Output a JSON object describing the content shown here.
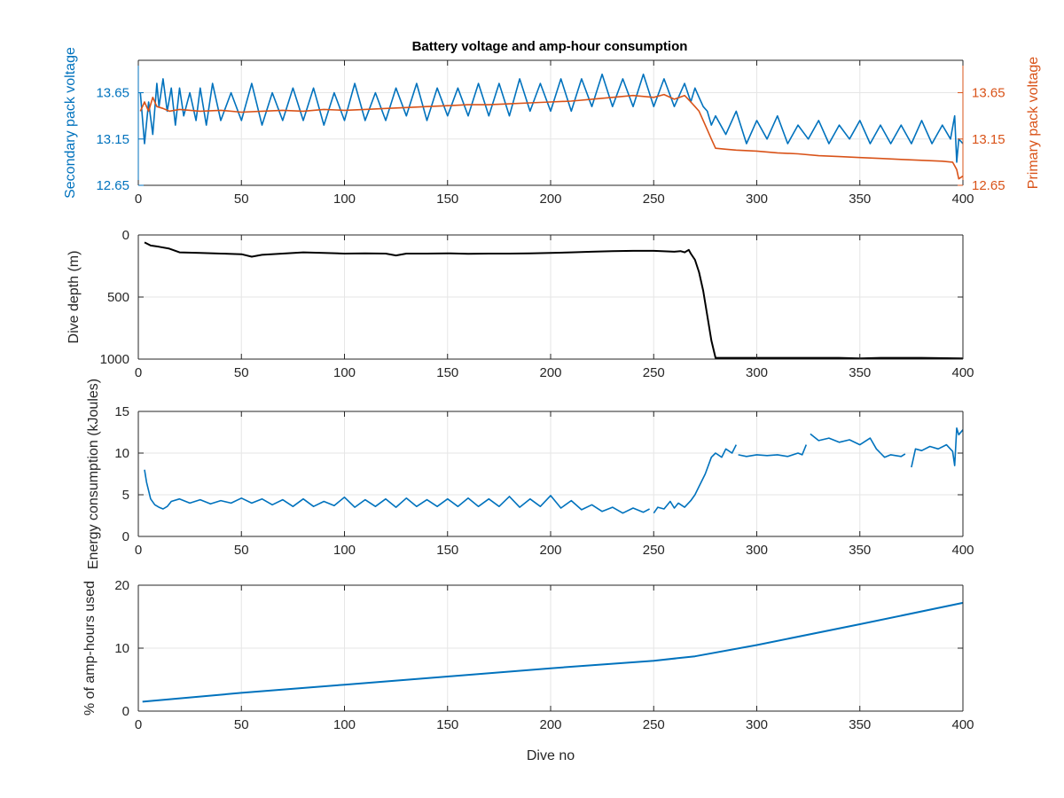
{
  "figure": {
    "title": "Battery voltage and amp-hour consumption"
  },
  "colors": {
    "blue": "#0072BD",
    "orange": "#D95319",
    "black": "#000000",
    "grid": "#e6e6e6",
    "axis": "#262626"
  },
  "chart_data": [
    {
      "type": "line",
      "title": "Battery voltage and amp-hour consumption",
      "xlabel": "",
      "ylabel": "Secondary pack voltage",
      "y2label": "Primary pack voltage",
      "xlim": [
        0,
        400
      ],
      "ylim": [
        12.65,
        14.0
      ],
      "y2lim": [
        12.65,
        14.0
      ],
      "xticks": [
        0,
        50,
        100,
        150,
        200,
        250,
        300,
        350,
        400
      ],
      "yticks": [
        12.65,
        13.15,
        13.65
      ],
      "y2ticks": [
        12.65,
        13.15,
        13.65
      ],
      "grid": true,
      "series": [
        {
          "color": "#0072BD",
          "axis": "left",
          "x": [
            1,
            3,
            5,
            7,
            9,
            10,
            12,
            14,
            16,
            18,
            20,
            22,
            25,
            28,
            30,
            33,
            36,
            40,
            45,
            50,
            55,
            60,
            65,
            70,
            75,
            80,
            85,
            90,
            95,
            100,
            105,
            110,
            115,
            120,
            125,
            130,
            135,
            140,
            145,
            150,
            155,
            160,
            165,
            170,
            175,
            180,
            185,
            190,
            195,
            200,
            205,
            210,
            215,
            220,
            225,
            230,
            235,
            240,
            245,
            250,
            255,
            260,
            265,
            268,
            270,
            272,
            274,
            276,
            278,
            280,
            285,
            290,
            295,
            300,
            305,
            310,
            315,
            320,
            325,
            330,
            335,
            340,
            345,
            350,
            355,
            360,
            365,
            370,
            375,
            380,
            385,
            390,
            394,
            396,
            397,
            398,
            400
          ],
          "values": [
            13.65,
            13.1,
            13.55,
            13.2,
            13.75,
            13.5,
            13.8,
            13.45,
            13.7,
            13.3,
            13.7,
            13.4,
            13.65,
            13.35,
            13.7,
            13.3,
            13.75,
            13.35,
            13.65,
            13.35,
            13.75,
            13.3,
            13.65,
            13.35,
            13.7,
            13.35,
            13.7,
            13.3,
            13.65,
            13.35,
            13.75,
            13.35,
            13.65,
            13.35,
            13.7,
            13.4,
            13.75,
            13.35,
            13.7,
            13.4,
            13.7,
            13.4,
            13.75,
            13.4,
            13.75,
            13.4,
            13.8,
            13.45,
            13.75,
            13.45,
            13.8,
            13.45,
            13.8,
            13.5,
            13.85,
            13.5,
            13.8,
            13.5,
            13.85,
            13.5,
            13.8,
            13.5,
            13.75,
            13.55,
            13.7,
            13.6,
            13.5,
            13.45,
            13.3,
            13.4,
            13.2,
            13.45,
            13.1,
            13.35,
            13.15,
            13.4,
            13.1,
            13.3,
            13.15,
            13.35,
            13.1,
            13.3,
            13.15,
            13.35,
            13.1,
            13.3,
            13.1,
            13.3,
            13.1,
            13.35,
            13.1,
            13.3,
            13.15,
            13.4,
            12.9,
            13.15,
            13.1
          ]
        },
        {
          "color": "#D95319",
          "axis": "right",
          "x": [
            1,
            3,
            5,
            7,
            9,
            12,
            15,
            20,
            25,
            30,
            40,
            50,
            60,
            70,
            80,
            90,
            100,
            110,
            120,
            130,
            140,
            150,
            160,
            170,
            180,
            190,
            200,
            210,
            220,
            230,
            240,
            250,
            255,
            260,
            265,
            268,
            270,
            272,
            274,
            276,
            278,
            280,
            285,
            290,
            300,
            310,
            320,
            330,
            340,
            350,
            360,
            370,
            380,
            390,
            395,
            397,
            398,
            400
          ],
          "values": [
            13.45,
            13.55,
            13.45,
            13.6,
            13.5,
            13.48,
            13.45,
            13.47,
            13.46,
            13.45,
            13.46,
            13.44,
            13.45,
            13.46,
            13.45,
            13.47,
            13.46,
            13.47,
            13.48,
            13.49,
            13.5,
            13.51,
            13.52,
            13.52,
            13.53,
            13.54,
            13.55,
            13.56,
            13.58,
            13.6,
            13.62,
            13.6,
            13.63,
            13.58,
            13.62,
            13.55,
            13.5,
            13.45,
            13.35,
            13.25,
            13.15,
            13.05,
            13.04,
            13.03,
            13.02,
            13.0,
            12.99,
            12.97,
            12.96,
            12.95,
            12.94,
            12.93,
            12.92,
            12.91,
            12.9,
            12.82,
            12.72,
            12.75
          ]
        }
      ]
    },
    {
      "type": "line",
      "title": "",
      "xlabel": "",
      "ylabel": "Dive depth (m)",
      "xlim": [
        0,
        400
      ],
      "ylim": [
        0,
        1000
      ],
      "y_reversed": true,
      "xticks": [
        0,
        50,
        100,
        150,
        200,
        250,
        300,
        350,
        400
      ],
      "yticks": [
        0,
        500,
        1000
      ],
      "ytick_labels": [
        "0",
        "500",
        "1000"
      ],
      "grid": true,
      "series": [
        {
          "color": "#000000",
          "x": [
            3,
            6,
            10,
            15,
            20,
            30,
            40,
            50,
            55,
            60,
            70,
            80,
            90,
            100,
            110,
            120,
            125,
            130,
            140,
            150,
            160,
            170,
            180,
            190,
            200,
            210,
            220,
            230,
            240,
            250,
            260,
            263,
            265,
            267,
            268,
            270,
            272,
            274,
            276,
            278,
            280,
            290,
            300,
            320,
            340,
            350,
            360,
            380,
            400
          ],
          "values": [
            60,
            85,
            95,
            110,
            140,
            145,
            150,
            155,
            175,
            160,
            150,
            140,
            145,
            150,
            148,
            150,
            165,
            150,
            150,
            148,
            152,
            150,
            150,
            148,
            145,
            140,
            135,
            130,
            128,
            128,
            135,
            130,
            140,
            120,
            150,
            200,
            300,
            450,
            650,
            850,
            990,
            990,
            990,
            990,
            990,
            995,
            990,
            990,
            995
          ]
        }
      ]
    },
    {
      "type": "line",
      "title": "",
      "xlabel": "",
      "ylabel": "Energy consumption (kJoules)",
      "xlim": [
        0,
        400
      ],
      "ylim": [
        0,
        15
      ],
      "xticks": [
        0,
        50,
        100,
        150,
        200,
        250,
        300,
        350,
        400
      ],
      "yticks": [
        0,
        5,
        10,
        15
      ],
      "grid": true,
      "series": [
        {
          "color": "#0072BD",
          "x": [
            3,
            4,
            6,
            8,
            10,
            12,
            14,
            16,
            20,
            25,
            30,
            35,
            40,
            45,
            50,
            55,
            60,
            65,
            70,
            75,
            80,
            85,
            90,
            95,
            100,
            105,
            110,
            115,
            120,
            125,
            130,
            135,
            140,
            145,
            150,
            155,
            160,
            165,
            170,
            175,
            180,
            185,
            190,
            195,
            200,
            205,
            210,
            215,
            220,
            225,
            230,
            235,
            240,
            245,
            248
          ],
          "values": [
            8,
            6.5,
            4.5,
            3.8,
            3.5,
            3.3,
            3.6,
            4.2,
            4.5,
            4.0,
            4.4,
            3.9,
            4.3,
            4.0,
            4.6,
            4.0,
            4.5,
            3.8,
            4.4,
            3.6,
            4.5,
            3.6,
            4.2,
            3.7,
            4.7,
            3.5,
            4.4,
            3.6,
            4.5,
            3.5,
            4.6,
            3.6,
            4.4,
            3.6,
            4.5,
            3.6,
            4.6,
            3.6,
            4.5,
            3.6,
            4.8,
            3.5,
            4.5,
            3.6,
            4.9,
            3.4,
            4.3,
            3.2,
            3.8,
            3.0,
            3.5,
            2.8,
            3.4,
            2.9,
            3.3
          ]
        },
        {
          "color": "#0072BD",
          "x": [
            250,
            252,
            255,
            258,
            260,
            262,
            265,
            268,
            270,
            272,
            275,
            278,
            280,
            283,
            285,
            288,
            290
          ],
          "values": [
            2.8,
            3.5,
            3.3,
            4.2,
            3.4,
            4.0,
            3.5,
            4.3,
            5.0,
            6.0,
            7.5,
            9.5,
            10.0,
            9.5,
            10.5,
            10.0,
            11.0
          ]
        },
        {
          "color": "#0072BD",
          "x": [
            291,
            295,
            300,
            305,
            310,
            315,
            320,
            322,
            324
          ],
          "values": [
            9.8,
            9.6,
            9.8,
            9.7,
            9.8,
            9.6,
            10.0,
            9.8,
            11.0
          ]
        },
        {
          "color": "#0072BD",
          "x": [
            326,
            330,
            335,
            340,
            345,
            350,
            355,
            358,
            360,
            362,
            365,
            370,
            372
          ],
          "values": [
            12.3,
            11.5,
            11.8,
            11.3,
            11.6,
            11.0,
            11.8,
            10.5,
            10.0,
            9.5,
            9.8,
            9.6,
            9.9
          ]
        },
        {
          "color": "#0072BD",
          "x": [
            375,
            377,
            380,
            384,
            388,
            392,
            395,
            396,
            397,
            398,
            400
          ],
          "values": [
            8.3,
            10.5,
            10.3,
            10.8,
            10.5,
            11.0,
            10.2,
            8.5,
            13.0,
            12.2,
            12.8
          ]
        }
      ]
    },
    {
      "type": "line",
      "title": "",
      "xlabel": "Dive no",
      "ylabel": "% of amp-hours used",
      "xlim": [
        0,
        400
      ],
      "ylim": [
        0,
        20
      ],
      "xticks": [
        0,
        50,
        100,
        150,
        200,
        250,
        300,
        350,
        400
      ],
      "yticks": [
        0,
        10,
        20
      ],
      "grid": true,
      "series": [
        {
          "color": "#0072BD",
          "x": [
            2,
            50,
            100,
            150,
            200,
            250,
            270,
            300,
            350,
            400
          ],
          "values": [
            1.5,
            2.9,
            4.2,
            5.5,
            6.8,
            8.0,
            8.7,
            10.5,
            13.8,
            17.2
          ]
        }
      ]
    }
  ]
}
